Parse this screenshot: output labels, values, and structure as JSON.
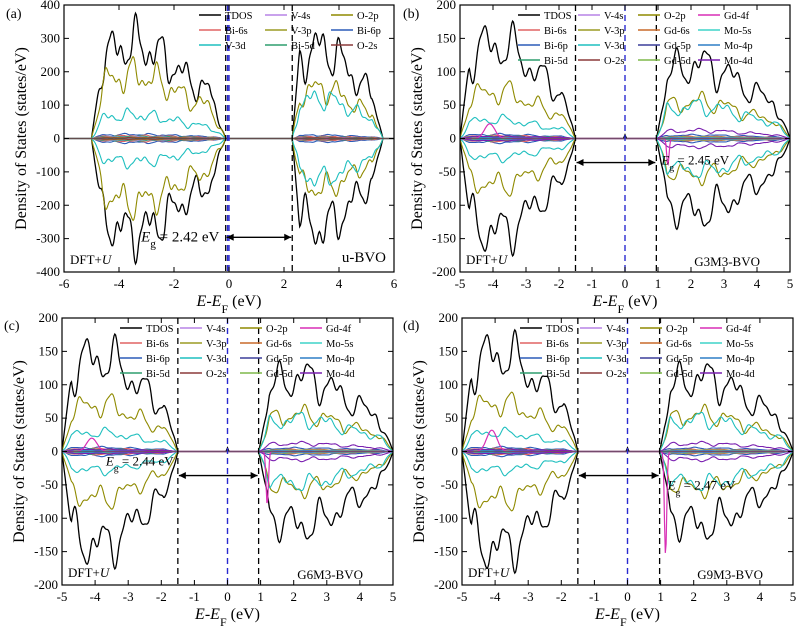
{
  "figure": {
    "colors": {
      "TDOS": "#000000",
      "V-4s": "#b784e6",
      "O-2p": "#8f8a00",
      "Bi-6s": "#e06363",
      "V-3p": "#9c9b24",
      "Bi-6p": "#2b5bb8",
      "V-3d": "#1fbfbf",
      "Bi-5d": "#2f9e6f",
      "O-2s": "#8b3a3a",
      "Gd-4f": "#d82fb5",
      "Gd-6s": "#c96a2a",
      "Gd-5p": "#3b3f9a",
      "Gd-5d": "#7fb84a",
      "Mo-5s": "#3fd4c9",
      "Mo-4p": "#2e7fc6",
      "Mo-4d": "#7a1fb0",
      "fermi": "#2a2ad0",
      "gap": "#000000"
    }
  },
  "chart_data": [
    {
      "type": "line",
      "panel_label": "(a)",
      "name": "u-BVO",
      "xlabel": "E-E_F (eV)",
      "ylabel": "Density of States (states/eV)",
      "xlim": [
        -6,
        6
      ],
      "ylim": [
        -400,
        400
      ],
      "xticks": [
        -6,
        -4,
        -2,
        0,
        2,
        4,
        6
      ],
      "yticks": [
        -400,
        -300,
        -200,
        -100,
        0,
        100,
        200,
        300,
        400
      ],
      "method": "DFT+U",
      "gap_text": "E_g = 2.42 eV",
      "gap_value_ev": 2.42,
      "gap_edges": [
        -0.12,
        2.3
      ],
      "fermi": 0,
      "text_pos": "bottom-right",
      "legend_cols": 3,
      "legend": [
        "TDOS",
        "V-4s",
        "O-2p",
        "Bi-6s",
        "V-3p",
        "Bi-6p",
        "V-3d",
        "Bi-5d",
        "O-2s"
      ],
      "vb_range": [
        -5,
        -0.12
      ],
      "cb_range": [
        2.3,
        5.6
      ],
      "amp": {
        "TDOS": [
          280,
          270
        ],
        "O-2p": [
          190,
          150
        ],
        "V-3d": [
          70,
          120
        ],
        "Bi-6p": [
          12,
          10
        ],
        "Bi-6s": [
          8,
          6
        ],
        "Bi-5d": [
          6,
          4
        ],
        "V-4s": [
          4,
          3
        ],
        "V-3p": [
          3,
          2
        ],
        "O-2s": [
          2,
          2
        ]
      },
      "gd_peak": null
    },
    {
      "type": "line",
      "panel_label": "(b)",
      "name": "G3M3-BVO",
      "xlabel": "E-E_F (eV)",
      "ylabel": "Density of States (states/eV)",
      "xlim": [
        -5,
        5
      ],
      "ylim": [
        -200,
        200
      ],
      "xticks": [
        -5,
        -4,
        -3,
        -2,
        -1,
        0,
        1,
        2,
        3,
        4,
        5
      ],
      "yticks": [
        -200,
        -150,
        -100,
        -50,
        0,
        50,
        100,
        150,
        200
      ],
      "method": "DFT+U",
      "gap_text": "E_g = 2.45 eV",
      "gap_value_ev": 2.45,
      "gap_edges": [
        -1.5,
        0.95
      ],
      "fermi": 0,
      "text_pos": "bottom-right",
      "legend_cols": 4,
      "legend": [
        "TDOS",
        "V-4s",
        "O-2p",
        "Gd-4f",
        "Bi-6s",
        "V-3p",
        "Gd-6s",
        "Mo-5s",
        "Bi-6p",
        "V-3d",
        "Gd-5p",
        "Mo-4p",
        "Bi-5d",
        "O-2s",
        "Gd-5d",
        "Mo-4d"
      ],
      "vb_range": [
        -5,
        -1.5
      ],
      "cb_range": [
        0.95,
        5
      ],
      "amp": {
        "TDOS": [
          140,
          110
        ],
        "O-2p": [
          70,
          55
        ],
        "V-3d": [
          28,
          48
        ],
        "Bi-6p": [
          6,
          5
        ],
        "Bi-6s": [
          4,
          3
        ],
        "Bi-5d": [
          3,
          2
        ],
        "V-4s": [
          2,
          2
        ],
        "V-3p": [
          2,
          2
        ],
        "O-2s": [
          1,
          1
        ],
        "Gd-6s": [
          1,
          1
        ],
        "Gd-5p": [
          1,
          1
        ],
        "Gd-5d": [
          2,
          2
        ],
        "Mo-5s": [
          1,
          1
        ],
        "Mo-4p": [
          1,
          1
        ],
        "Mo-4d": [
          3,
          12
        ]
      },
      "gd_peak": {
        "e": -4.1,
        "up": 22,
        "down_e": 1.3,
        "down": -40
      }
    },
    {
      "type": "line",
      "panel_label": "(c)",
      "name": "G6M3-BVO",
      "xlabel": "E-E_F (eV)",
      "ylabel": "Density of States (states/eV)",
      "xlim": [
        -5,
        5
      ],
      "ylim": [
        -200,
        200
      ],
      "xticks": [
        -5,
        -4,
        -3,
        -2,
        -1,
        0,
        1,
        2,
        3,
        4,
        5
      ],
      "yticks": [
        -200,
        -150,
        -100,
        -50,
        0,
        50,
        100,
        150,
        200
      ],
      "method": "DFT+U",
      "gap_text": "E_g = 2.44 eV",
      "gap_value_ev": 2.44,
      "gap_edges": [
        -1.5,
        0.94
      ],
      "fermi": 0,
      "text_pos": "bottom-right",
      "legend_cols": 4,
      "legend": [
        "TDOS",
        "V-4s",
        "O-2p",
        "Gd-4f",
        "Bi-6s",
        "V-3p",
        "Gd-6s",
        "Mo-5s",
        "Bi-6p",
        "V-3d",
        "Gd-5p",
        "Mo-4p",
        "Bi-5d",
        "O-2s",
        "Gd-5d",
        "Mo-4d"
      ],
      "vb_range": [
        -5,
        -1.5
      ],
      "cb_range": [
        0.94,
        5
      ],
      "amp": {
        "TDOS": [
          140,
          110
        ],
        "O-2p": [
          70,
          55
        ],
        "V-3d": [
          28,
          48
        ],
        "Bi-6p": [
          6,
          5
        ],
        "Bi-6s": [
          4,
          3
        ],
        "Bi-5d": [
          3,
          2
        ],
        "V-4s": [
          2,
          2
        ],
        "V-3p": [
          2,
          2
        ],
        "O-2s": [
          1,
          1
        ],
        "Gd-6s": [
          1,
          1
        ],
        "Gd-5p": [
          1,
          1
        ],
        "Gd-5d": [
          2,
          2
        ],
        "Mo-5s": [
          1,
          1
        ],
        "Mo-4p": [
          1,
          1
        ],
        "Mo-4d": [
          3,
          12
        ]
      },
      "gd_peak": {
        "e": -4.1,
        "up": 20,
        "down_e": 1.2,
        "down": -80
      }
    },
    {
      "type": "line",
      "panel_label": "(d)",
      "name": "G9M3-BVO",
      "xlabel": "E-E_F (eV)",
      "ylabel": "Density of States (states/eV)",
      "xlim": [
        -5,
        5
      ],
      "ylim": [
        -200,
        200
      ],
      "xticks": [
        -5,
        -4,
        -3,
        -2,
        -1,
        0,
        1,
        2,
        3,
        4,
        5
      ],
      "yticks": [
        -200,
        -150,
        -100,
        -50,
        0,
        50,
        100,
        150,
        200
      ],
      "method": "DFT+U",
      "gap_text": "E_g = 2.47 eV",
      "gap_value_ev": 2.47,
      "gap_edges": [
        -1.5,
        0.97
      ],
      "fermi": 0,
      "text_pos": "bottom-right",
      "legend_cols": 4,
      "legend": [
        "TDOS",
        "V-4s",
        "O-2p",
        "Gd-4f",
        "Bi-6s",
        "V-3p",
        "Gd-6s",
        "Mo-5s",
        "Bi-6p",
        "V-3d",
        "Gd-5p",
        "Mo-4p",
        "Bi-5d",
        "O-2s",
        "Gd-5d",
        "Mo-4d"
      ],
      "vb_range": [
        -5,
        -1.5
      ],
      "cb_range": [
        0.97,
        5
      ],
      "amp": {
        "TDOS": [
          145,
          110
        ],
        "O-2p": [
          72,
          55
        ],
        "V-3d": [
          28,
          48
        ],
        "Bi-6p": [
          6,
          5
        ],
        "Bi-6s": [
          4,
          3
        ],
        "Bi-5d": [
          3,
          2
        ],
        "V-4s": [
          2,
          2
        ],
        "V-3p": [
          2,
          2
        ],
        "O-2s": [
          1,
          1
        ],
        "Gd-6s": [
          1,
          1
        ],
        "Gd-5p": [
          1,
          1
        ],
        "Gd-5d": [
          2,
          2
        ],
        "Mo-5s": [
          1,
          1
        ],
        "Mo-4p": [
          1,
          1
        ],
        "Mo-4d": [
          3,
          12
        ]
      },
      "gd_peak": {
        "e": -4.1,
        "up": 32,
        "down_e": 1.15,
        "down": -155
      }
    }
  ]
}
